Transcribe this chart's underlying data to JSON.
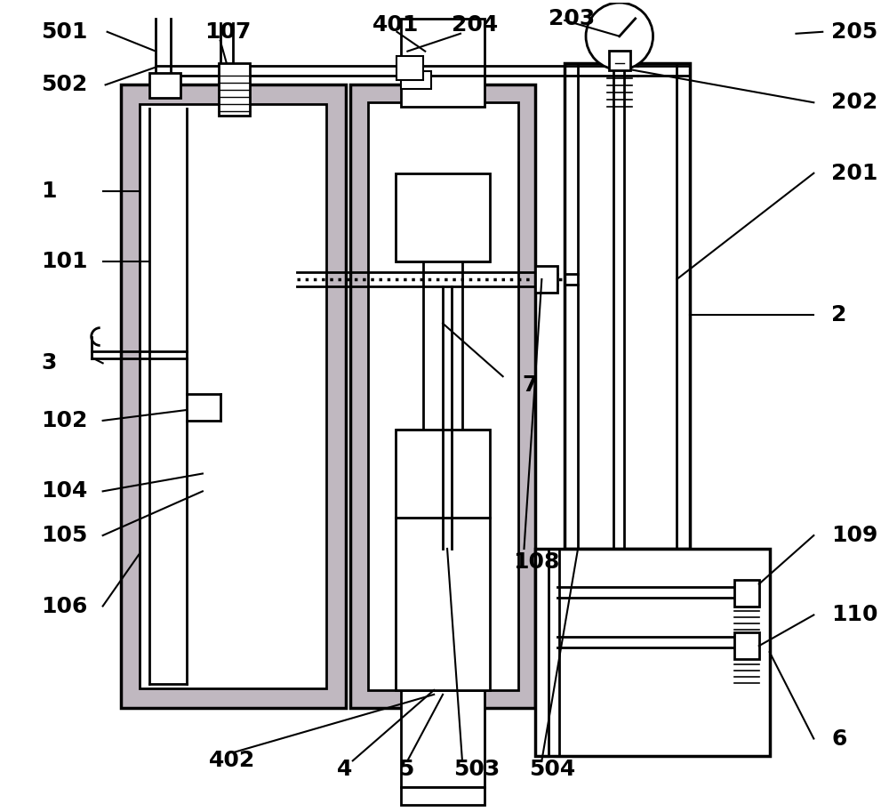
{
  "bg_color": "#ffffff",
  "line_color": "#000000",
  "gray_fill": "#c0b8c0",
  "figsize": [
    10.0,
    9.13
  ],
  "lw_main": 2.0,
  "lw_thick": 2.5,
  "lw_thin": 1.5,
  "font_size": 18
}
